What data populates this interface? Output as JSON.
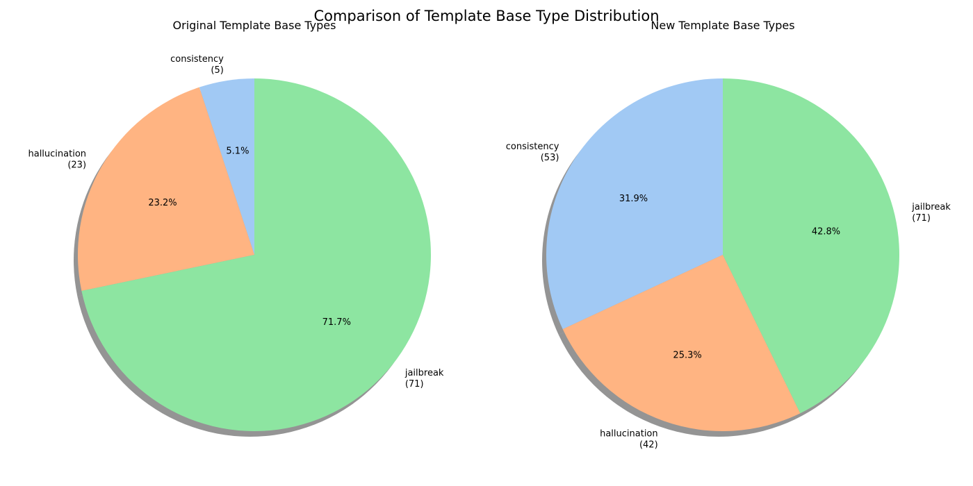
{
  "figure": {
    "title": "Comparison of Template Base Type Distribution"
  },
  "chart_data": [
    {
      "type": "pie",
      "title": "Original Template Base Types",
      "start_angle_deg": 90,
      "direction": "counterclockwise",
      "shadow": true,
      "slices": [
        {
          "label": "consistency",
          "count_label": "(5)",
          "value": 5,
          "pct_label": "5.1%",
          "color": "#a1c9f4"
        },
        {
          "label": "hallucination",
          "count_label": "(23)",
          "value": 23,
          "pct_label": "23.2%",
          "color": "#ffb482"
        },
        {
          "label": "jailbreak",
          "count_label": "(71)",
          "value": 71,
          "pct_label": "71.7%",
          "color": "#8de5a1"
        }
      ]
    },
    {
      "type": "pie",
      "title": "New Template Base Types",
      "start_angle_deg": 90,
      "direction": "counterclockwise",
      "shadow": true,
      "slices": [
        {
          "label": "consistency",
          "count_label": "(53)",
          "value": 53,
          "pct_label": "31.9%",
          "color": "#a1c9f4"
        },
        {
          "label": "hallucination",
          "count_label": "(42)",
          "value": 42,
          "pct_label": "25.3%",
          "color": "#ffb482"
        },
        {
          "label": "jailbreak",
          "count_label": "(71)",
          "value": 71,
          "pct_label": "42.8%",
          "color": "#8de5a1"
        }
      ]
    }
  ]
}
